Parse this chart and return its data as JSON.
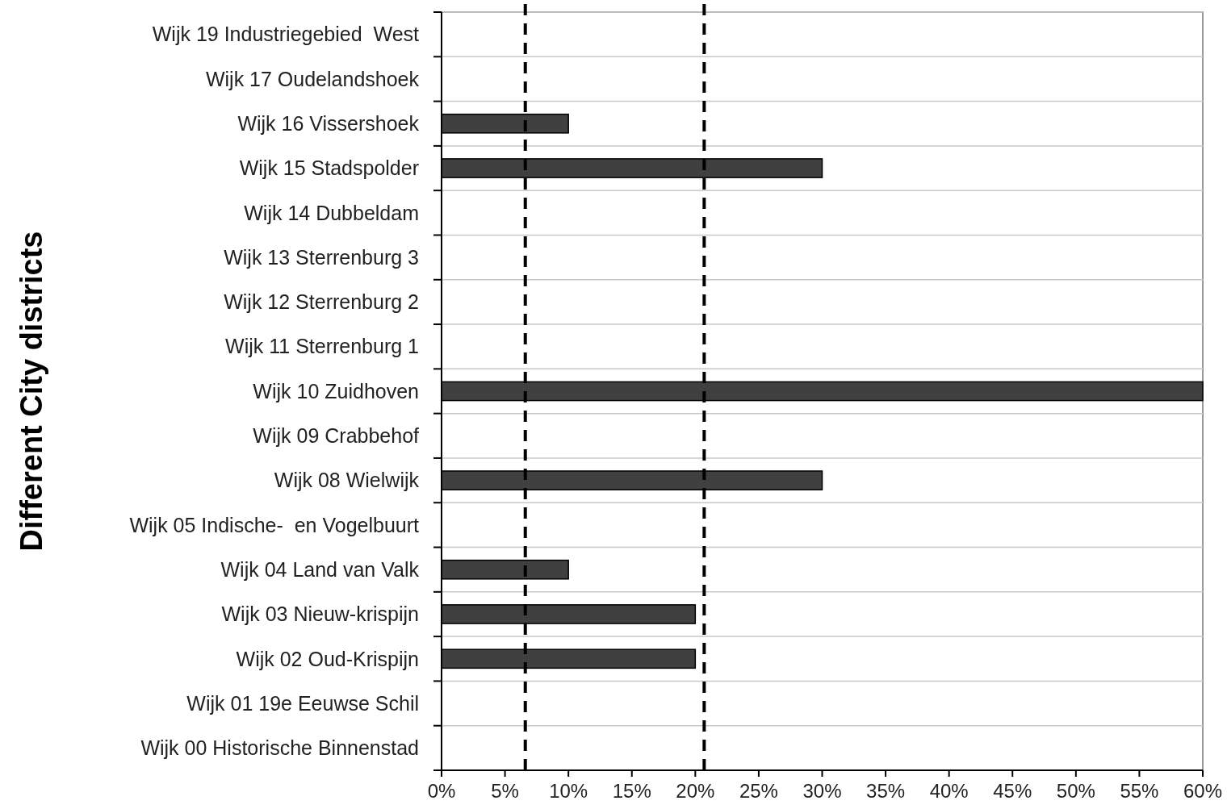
{
  "chart_data": {
    "type": "bar",
    "orientation": "horizontal",
    "ylabel": "Different City districts",
    "categories": [
      "Wijk 19 Industriegebied  West",
      "Wijk 17 Oudelandshoek",
      "Wijk 16 Vissershoek",
      "Wijk 15 Stadspolder",
      "Wijk 14 Dubbeldam",
      "Wijk 13 Sterrenburg 3",
      "Wijk 12 Sterrenburg 2",
      "Wijk 11 Sterrenburg 1",
      "Wijk 10 Zuidhoven",
      "Wijk 09 Crabbehof",
      "Wijk 08 Wielwijk",
      "Wijk 05 Indische-  en Vogelbuurt",
      "Wijk 04 Land van Valk",
      "Wijk 03 Nieuw-krispijn",
      "Wijk 02 Oud-Krispijn",
      "Wijk 01 19e Eeuwse Schil",
      "Wijk 00 Historische Binnenstad"
    ],
    "values": [
      0,
      0,
      10,
      30,
      0,
      0,
      0,
      0,
      60,
      0,
      30,
      0,
      10,
      20,
      20,
      0,
      0
    ],
    "color": "#404040",
    "xlim": [
      0,
      60
    ],
    "xticks": [
      {
        "value": 0,
        "label": "0%"
      },
      {
        "value": 5,
        "label": "5%"
      },
      {
        "value": 10,
        "label": "10%"
      },
      {
        "value": 15,
        "label": "15%"
      },
      {
        "value": 20,
        "label": "20%"
      },
      {
        "value": 25,
        "label": "25%"
      },
      {
        "value": 30,
        "label": "30%"
      },
      {
        "value": 35,
        "label": "35%"
      },
      {
        "value": 40,
        "label": "40%"
      },
      {
        "value": 45,
        "label": "45%"
      },
      {
        "value": 50,
        "label": "50%"
      },
      {
        "value": 55,
        "label": "55%"
      },
      {
        "value": 60,
        "label": "60%"
      }
    ],
    "grid": "y",
    "ref_lines": [
      {
        "axis": "x",
        "value": 6.6,
        "color": "#000000",
        "line_style": "dashed"
      },
      {
        "axis": "x",
        "value": 20.7,
        "color": "#000000",
        "line_style": "dashed"
      }
    ]
  }
}
